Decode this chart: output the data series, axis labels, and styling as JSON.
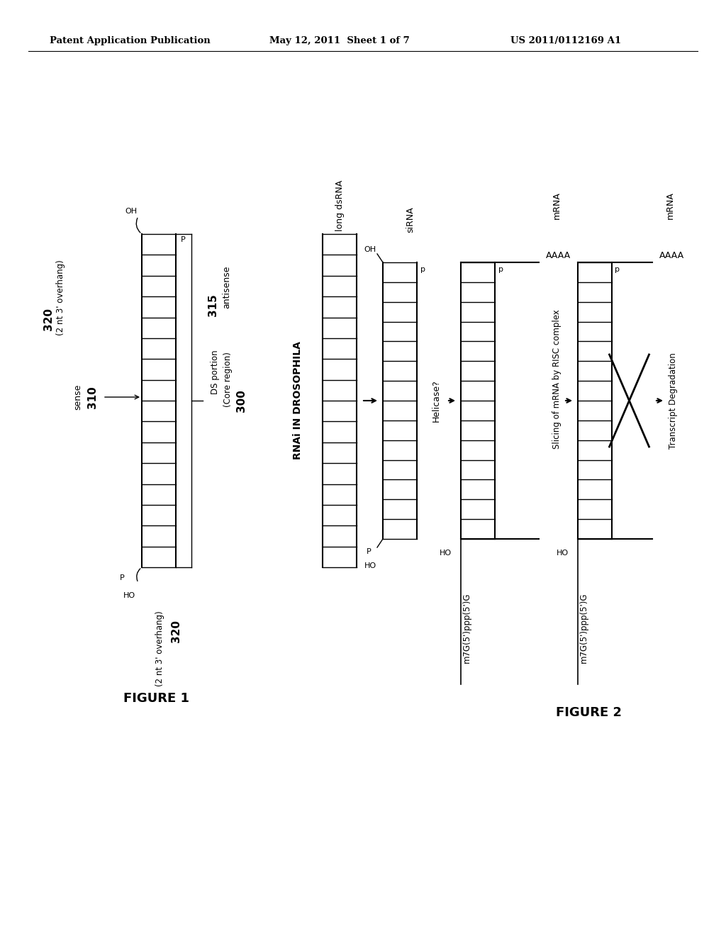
{
  "bg_color": "#ffffff",
  "header_left": "Patent Application Publication",
  "header_mid": "May 12, 2011  Sheet 1 of 7",
  "header_right": "US 2011/0112169 A1",
  "fig1_label": "FIGURE 1",
  "fig2_label": "FIGURE 2",
  "rnai_label": "RNAi IN DROSOPHILA"
}
